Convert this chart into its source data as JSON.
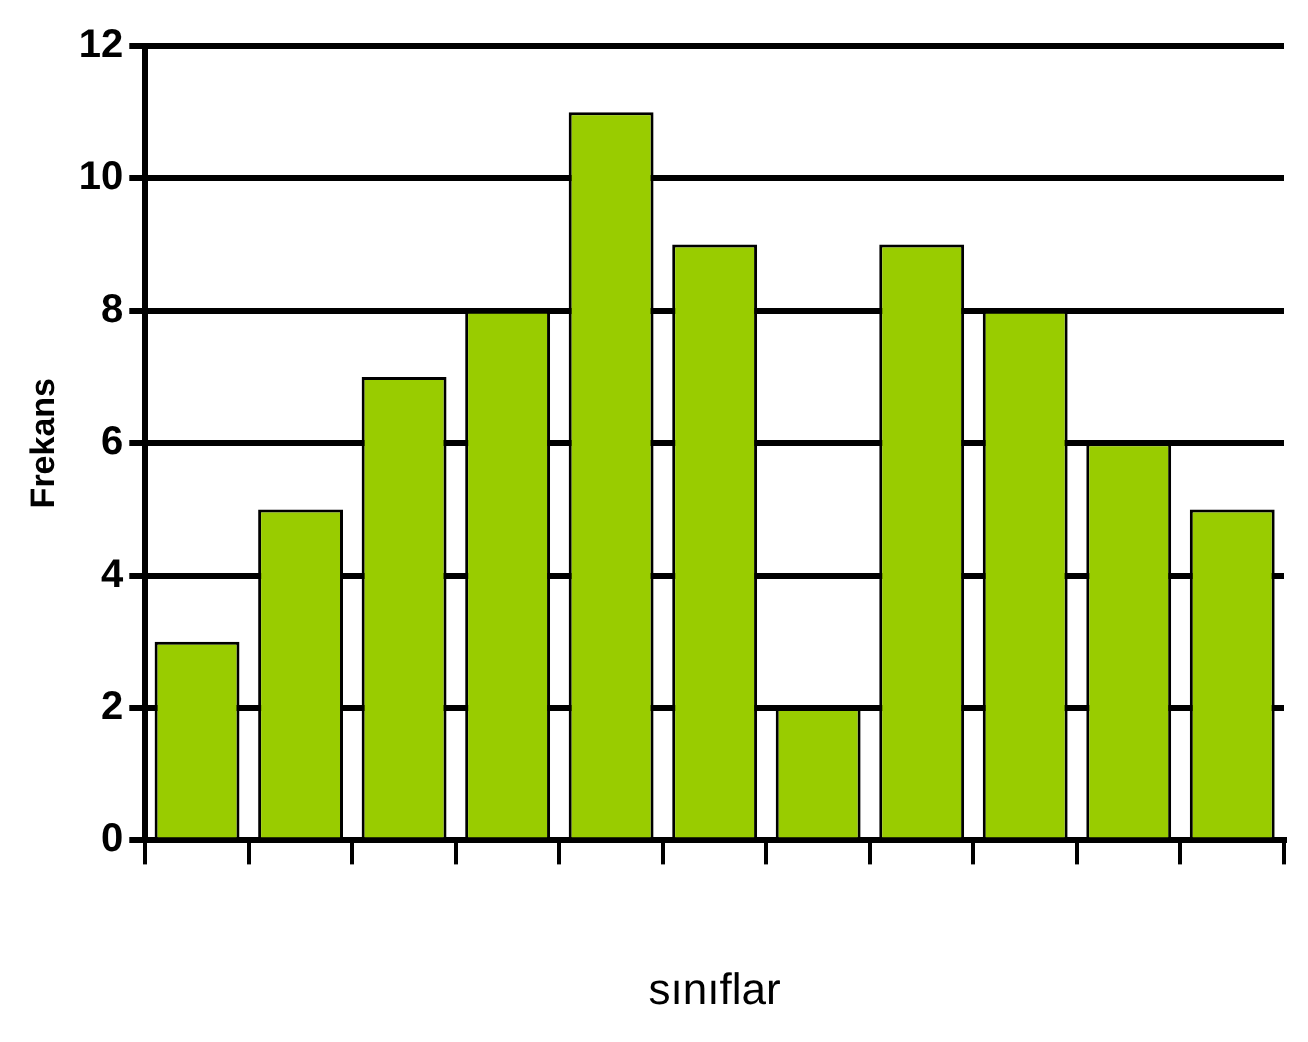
{
  "chart_data": {
    "type": "bar",
    "xlabel": "sınıflar",
    "ylabel": "Frekans",
    "categories": [
      null,
      null,
      null,
      null,
      null,
      null,
      null,
      null,
      null,
      null,
      null
    ],
    "values": [
      3,
      5,
      7,
      8,
      11,
      9,
      2,
      9,
      8,
      6,
      5
    ],
    "color": "#99cc00",
    "ylim": [
      0,
      12
    ],
    "yticks": [
      0,
      2,
      4,
      6,
      8,
      10,
      12
    ],
    "grid": "y"
  }
}
